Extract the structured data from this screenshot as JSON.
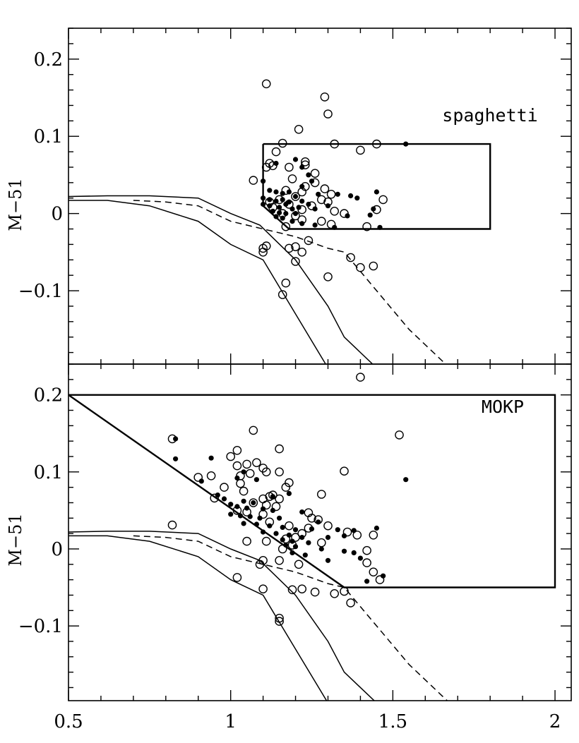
{
  "chart_data": [
    {
      "type": "scatter",
      "panel": "top",
      "label": "spaghetti",
      "ylabel": "M−51",
      "xlim": [
        0.5,
        2.05
      ],
      "ylim": [
        -0.195,
        0.24
      ],
      "yticks": [
        0.2,
        0.1,
        0,
        -0.1
      ],
      "ytick_labels": [
        "0.2",
        "0.1",
        "0",
        "−0.1"
      ],
      "selection_box": [
        [
          1.1,
          0.09
        ],
        [
          1.8,
          0.09
        ],
        [
          1.8,
          -0.02
        ],
        [
          1.18,
          -0.02
        ],
        [
          1.1,
          0.01
        ],
        [
          1.1,
          0.09
        ]
      ],
      "model_curves": [
        {
          "style": "solid",
          "points": [
            [
              0.5,
              0.017
            ],
            [
              0.62,
              0.017
            ],
            [
              0.75,
              0.01
            ],
            [
              0.9,
              -0.01
            ],
            [
              1.0,
              -0.04
            ],
            [
              1.1,
              -0.06
            ],
            [
              1.2,
              -0.13
            ],
            [
              1.3,
              -0.2
            ],
            [
              1.35,
              -0.23
            ],
            [
              1.42,
              -0.29
            ]
          ]
        },
        {
          "style": "solid",
          "points": [
            [
              0.5,
              0.022
            ],
            [
              0.62,
              0.023
            ],
            [
              0.75,
              0.023
            ],
            [
              0.9,
              0.02
            ],
            [
              1.0,
              0.0
            ],
            [
              1.09,
              -0.015
            ],
            [
              1.2,
              -0.06
            ],
            [
              1.3,
              -0.12
            ],
            [
              1.35,
              -0.16
            ],
            [
              1.5,
              -0.22
            ]
          ]
        },
        {
          "style": "dashed",
          "points": [
            [
              0.7,
              0.017
            ],
            [
              0.8,
              0.015
            ],
            [
              0.9,
              0.01
            ],
            [
              1.0,
              -0.01
            ],
            [
              1.1,
              -0.02
            ],
            [
              1.2,
              -0.03
            ],
            [
              1.3,
              -0.045
            ],
            [
              1.35,
              -0.05
            ],
            [
              1.45,
              -0.1
            ],
            [
              1.55,
              -0.15
            ],
            [
              1.65,
              -0.19
            ],
            [
              1.75,
              -0.23
            ]
          ]
        }
      ],
      "open_points": [
        [
          1.11,
          0.168
        ],
        [
          1.29,
          0.151
        ],
        [
          1.3,
          0.129
        ],
        [
          1.21,
          0.109
        ],
        [
          1.16,
          0.091
        ],
        [
          1.32,
          0.09
        ],
        [
          1.45,
          0.09
        ],
        [
          1.4,
          0.082
        ],
        [
          1.14,
          0.08
        ],
        [
          1.12,
          0.065
        ],
        [
          1.13,
          0.062
        ],
        [
          1.23,
          0.067
        ],
        [
          1.23,
          0.063
        ],
        [
          1.11,
          0.06
        ],
        [
          1.18,
          0.06
        ],
        [
          1.26,
          0.052
        ],
        [
          1.19,
          0.045
        ],
        [
          1.07,
          0.043
        ],
        [
          1.26,
          0.04
        ],
        [
          1.23,
          0.035
        ],
        [
          1.29,
          0.032
        ],
        [
          1.17,
          0.03
        ],
        [
          1.22,
          0.028
        ],
        [
          1.31,
          0.025
        ],
        [
          1.2,
          0.022
        ],
        [
          1.28,
          0.018
        ],
        [
          1.15,
          0.018
        ],
        [
          1.3,
          0.015
        ],
        [
          1.12,
          0.015
        ],
        [
          1.47,
          0.018
        ],
        [
          1.18,
          0.012
        ],
        [
          1.25,
          0.01
        ],
        [
          1.13,
          0.008
        ],
        [
          1.22,
          0.005
        ],
        [
          1.32,
          0.003
        ],
        [
          1.45,
          0.005
        ],
        [
          1.16,
          0.0
        ],
        [
          1.2,
          -0.003
        ],
        [
          1.35,
          0.0
        ],
        [
          1.22,
          -0.008
        ],
        [
          1.28,
          -0.01
        ],
        [
          1.31,
          -0.014
        ],
        [
          1.17,
          -0.017
        ],
        [
          1.42,
          -0.017
        ],
        [
          1.24,
          -0.035
        ],
        [
          1.1,
          -0.045
        ],
        [
          1.11,
          -0.042
        ],
        [
          1.18,
          -0.045
        ],
        [
          1.22,
          -0.05
        ],
        [
          1.2,
          -0.043
        ],
        [
          1.1,
          -0.05
        ],
        [
          1.2,
          -0.062
        ],
        [
          1.37,
          -0.057
        ],
        [
          1.4,
          -0.07
        ],
        [
          1.44,
          -0.068
        ],
        [
          1.3,
          -0.082
        ],
        [
          1.17,
          -0.09
        ],
        [
          1.16,
          -0.105
        ],
        [
          1.4,
          -0.212
        ]
      ],
      "filled_points": [
        [
          1.54,
          0.09
        ],
        [
          1.2,
          0.07
        ],
        [
          1.14,
          0.065
        ],
        [
          1.22,
          0.06
        ],
        [
          1.24,
          0.05
        ],
        [
          1.25,
          0.042
        ],
        [
          1.1,
          0.042
        ],
        [
          1.22,
          0.035
        ],
        [
          1.12,
          0.03
        ],
        [
          1.14,
          0.028
        ],
        [
          1.16,
          0.026
        ],
        [
          1.18,
          0.028
        ],
        [
          1.2,
          0.022
        ],
        [
          1.27,
          0.025
        ],
        [
          1.33,
          0.025
        ],
        [
          1.37,
          0.023
        ],
        [
          1.45,
          0.028
        ],
        [
          1.1,
          0.02
        ],
        [
          1.12,
          0.018
        ],
        [
          1.14,
          0.016
        ],
        [
          1.16,
          0.018
        ],
        [
          1.18,
          0.015
        ],
        [
          1.22,
          0.016
        ],
        [
          1.24,
          0.012
        ],
        [
          1.3,
          0.01
        ],
        [
          1.39,
          0.02
        ],
        [
          1.1,
          0.012
        ],
        [
          1.12,
          0.01
        ],
        [
          1.15,
          0.008
        ],
        [
          1.17,
          0.012
        ],
        [
          1.19,
          0.006
        ],
        [
          1.21,
          0.008
        ],
        [
          1.26,
          0.006
        ],
        [
          1.13,
          0.003
        ],
        [
          1.15,
          0.001
        ],
        [
          1.17,
          0.0
        ],
        [
          1.2,
          0.0
        ],
        [
          1.14,
          -0.004
        ],
        [
          1.16,
          -0.006
        ],
        [
          1.19,
          -0.01
        ],
        [
          1.22,
          -0.013
        ],
        [
          1.26,
          -0.015
        ],
        [
          1.32,
          -0.018
        ],
        [
          1.36,
          -0.003
        ],
        [
          1.43,
          -0.002
        ],
        [
          1.44,
          0.006
        ],
        [
          1.46,
          -0.018
        ]
      ]
    },
    {
      "type": "scatter",
      "panel": "bottom",
      "label": "MOKP",
      "xlabel": "",
      "ylabel": "M−51",
      "xlim": [
        0.5,
        2.05
      ],
      "ylim": [
        -0.197,
        0.24
      ],
      "xticks": [
        0.5,
        1,
        1.5,
        2
      ],
      "xtick_labels": [
        "0.5",
        "1",
        "1.5",
        "2"
      ],
      "yticks": [
        0.2,
        0.1,
        0,
        -0.1
      ],
      "ytick_labels": [
        "0.2",
        "0.1",
        "0",
        "−0.1"
      ],
      "selection_box": [
        [
          0.5,
          0.2
        ],
        [
          2.0,
          0.2
        ],
        [
          2.0,
          -0.05
        ],
        [
          1.35,
          -0.05
        ],
        [
          0.5,
          0.2
        ]
      ],
      "model_curves": [
        {
          "style": "solid",
          "points": [
            [
              0.5,
              0.017
            ],
            [
              0.62,
              0.017
            ],
            [
              0.75,
              0.01
            ],
            [
              0.9,
              -0.01
            ],
            [
              1.0,
              -0.04
            ],
            [
              1.1,
              -0.06
            ],
            [
              1.2,
              -0.13
            ],
            [
              1.3,
              -0.2
            ],
            [
              1.35,
              -0.23
            ],
            [
              1.42,
              -0.29
            ]
          ]
        },
        {
          "style": "solid",
          "points": [
            [
              0.5,
              0.022
            ],
            [
              0.62,
              0.023
            ],
            [
              0.75,
              0.023
            ],
            [
              0.9,
              0.02
            ],
            [
              1.0,
              0.0
            ],
            [
              1.09,
              -0.015
            ],
            [
              1.2,
              -0.06
            ],
            [
              1.3,
              -0.12
            ],
            [
              1.35,
              -0.16
            ],
            [
              1.5,
              -0.22
            ]
          ]
        },
        {
          "style": "dashed",
          "points": [
            [
              0.7,
              0.017
            ],
            [
              0.8,
              0.015
            ],
            [
              0.9,
              0.01
            ],
            [
              1.0,
              -0.01
            ],
            [
              1.1,
              -0.02
            ],
            [
              1.2,
              -0.03
            ],
            [
              1.3,
              -0.045
            ],
            [
              1.35,
              -0.05
            ],
            [
              1.45,
              -0.1
            ],
            [
              1.55,
              -0.15
            ],
            [
              1.65,
              -0.19
            ],
            [
              1.75,
              -0.23
            ]
          ]
        }
      ],
      "open_points": [
        [
          0.82,
          0.143
        ],
        [
          1.07,
          0.154
        ],
        [
          1.52,
          0.148
        ],
        [
          1.15,
          0.13
        ],
        [
          1.02,
          0.128
        ],
        [
          1.0,
          0.12
        ],
        [
          1.05,
          0.11
        ],
        [
          1.08,
          0.112
        ],
        [
          1.1,
          0.105
        ],
        [
          1.02,
          0.108
        ],
        [
          1.11,
          0.1
        ],
        [
          1.15,
          0.1
        ],
        [
          1.35,
          0.101
        ],
        [
          0.9,
          0.093
        ],
        [
          0.94,
          0.095
        ],
        [
          1.03,
          0.095
        ],
        [
          1.06,
          0.098
        ],
        [
          1.18,
          0.086
        ],
        [
          1.03,
          0.085
        ],
        [
          1.17,
          0.08
        ],
        [
          0.98,
          0.08
        ],
        [
          1.04,
          0.075
        ],
        [
          1.28,
          0.071
        ],
        [
          1.12,
          0.068
        ],
        [
          1.13,
          0.07
        ],
        [
          1.1,
          0.065
        ],
        [
          1.15,
          0.065
        ],
        [
          0.95,
          0.066
        ],
        [
          1.07,
          0.06
        ],
        [
          1.11,
          0.057
        ],
        [
          1.14,
          0.055
        ],
        [
          1.02,
          0.05
        ],
        [
          1.05,
          0.048
        ],
        [
          1.1,
          0.045
        ],
        [
          1.24,
          0.047
        ],
        [
          1.25,
          0.04
        ],
        [
          1.27,
          0.038
        ],
        [
          1.12,
          0.035
        ],
        [
          1.18,
          0.03
        ],
        [
          1.24,
          0.027
        ],
        [
          1.3,
          0.03
        ],
        [
          1.36,
          0.022
        ],
        [
          1.22,
          0.02
        ],
        [
          1.39,
          0.018
        ],
        [
          1.44,
          0.018
        ],
        [
          1.2,
          0.015
        ],
        [
          1.17,
          0.013
        ],
        [
          1.11,
          0.01
        ],
        [
          1.19,
          0.005
        ],
        [
          1.28,
          0.008
        ],
        [
          1.16,
          0.0
        ],
        [
          1.42,
          -0.002
        ],
        [
          1.21,
          -0.02
        ],
        [
          1.15,
          -0.015
        ],
        [
          1.1,
          -0.015
        ],
        [
          1.09,
          -0.02
        ],
        [
          1.42,
          -0.018
        ],
        [
          1.44,
          -0.03
        ],
        [
          1.46,
          -0.04
        ],
        [
          0.82,
          0.031
        ],
        [
          1.05,
          0.01
        ],
        [
          1.02,
          -0.037
        ],
        [
          1.1,
          -0.052
        ],
        [
          1.19,
          -0.053
        ],
        [
          1.22,
          -0.052
        ],
        [
          1.26,
          -0.056
        ],
        [
          1.32,
          -0.058
        ],
        [
          1.35,
          -0.055
        ],
        [
          1.37,
          -0.07
        ],
        [
          1.15,
          -0.09
        ],
        [
          1.15,
          -0.094
        ]
      ],
      "filled_points": [
        [
          0.83,
          0.143
        ],
        [
          0.83,
          0.117
        ],
        [
          0.94,
          0.118
        ],
        [
          1.54,
          0.09
        ],
        [
          1.04,
          0.1
        ],
        [
          1.02,
          0.092
        ],
        [
          1.08,
          0.09
        ],
        [
          0.91,
          0.088
        ],
        [
          1.18,
          0.072
        ],
        [
          1.13,
          0.068
        ],
        [
          0.96,
          0.07
        ],
        [
          0.98,
          0.065
        ],
        [
          1.04,
          0.062
        ],
        [
          1.07,
          0.06
        ],
        [
          1.0,
          0.058
        ],
        [
          1.02,
          0.055
        ],
        [
          1.05,
          0.053
        ],
        [
          1.1,
          0.052
        ],
        [
          1.13,
          0.05
        ],
        [
          1.22,
          0.048
        ],
        [
          1.0,
          0.045
        ],
        [
          1.03,
          0.043
        ],
        [
          1.06,
          0.042
        ],
        [
          1.09,
          0.04
        ],
        [
          1.15,
          0.04
        ],
        [
          1.27,
          0.035
        ],
        [
          1.04,
          0.033
        ],
        [
          1.08,
          0.032
        ],
        [
          1.12,
          0.03
        ],
        [
          1.16,
          0.028
        ],
        [
          1.2,
          0.025
        ],
        [
          1.25,
          0.026
        ],
        [
          1.33,
          0.025
        ],
        [
          1.38,
          0.024
        ],
        [
          1.45,
          0.027
        ],
        [
          1.1,
          0.022
        ],
        [
          1.14,
          0.02
        ],
        [
          1.18,
          0.018
        ],
        [
          1.22,
          0.015
        ],
        [
          1.3,
          0.015
        ],
        [
          1.35,
          0.017
        ],
        [
          1.16,
          0.012
        ],
        [
          1.19,
          0.01
        ],
        [
          1.24,
          0.008
        ],
        [
          1.17,
          0.005
        ],
        [
          1.2,
          0.003
        ],
        [
          1.28,
          0.0
        ],
        [
          1.35,
          -0.003
        ],
        [
          1.38,
          -0.005
        ],
        [
          1.19,
          -0.005
        ],
        [
          1.23,
          -0.008
        ],
        [
          1.3,
          -0.015
        ],
        [
          1.4,
          -0.012
        ],
        [
          1.47,
          -0.035
        ],
        [
          1.42,
          -0.042
        ]
      ]
    }
  ]
}
